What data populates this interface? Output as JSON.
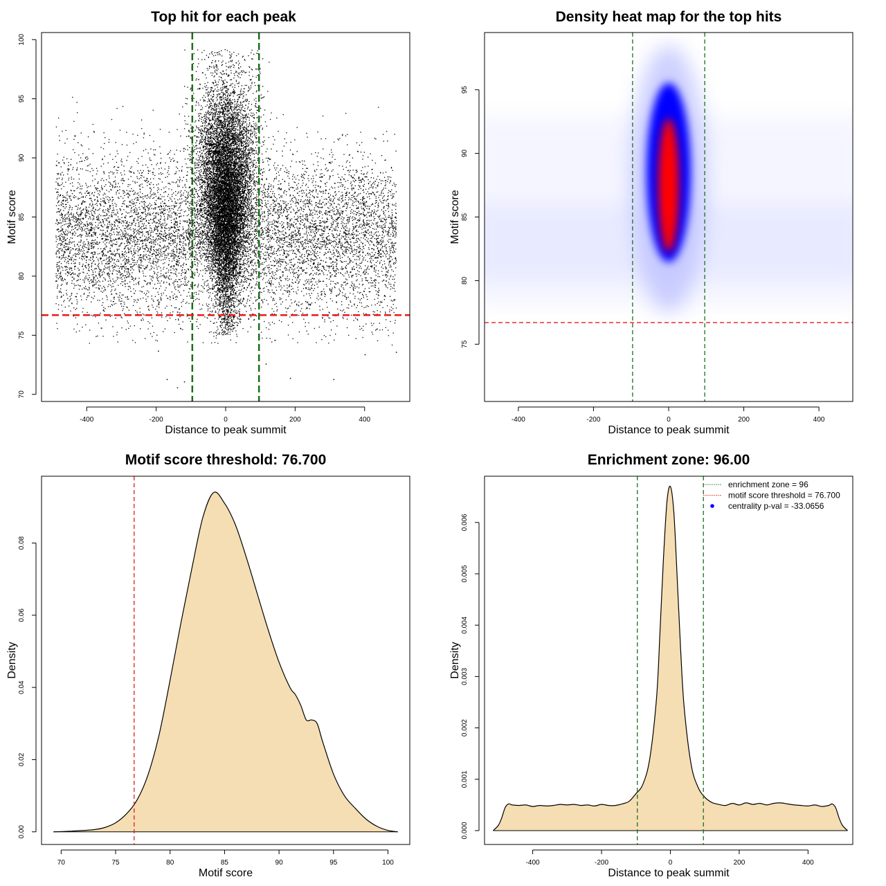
{
  "chart_data": [
    {
      "type": "scatter",
      "title": "Top hit for each peak",
      "xlabel": "Distance to peak summit",
      "ylabel": "Motif score",
      "xlim": [
        -530,
        530
      ],
      "ylim": [
        69.4,
        100.6
      ],
      "xticks": [
        "-400",
        "-200",
        "0",
        "200",
        "400"
      ],
      "yticks": [
        "70",
        "75",
        "80",
        "85",
        "90",
        "95",
        "100"
      ],
      "background_points": {
        "x_range": [
          -490,
          490
        ],
        "y_center": 83.5,
        "y_spread": 3.4,
        "count": 9000
      },
      "peak_points": {
        "x_center": 0,
        "x_spread": 28,
        "y_center": 87,
        "y_spread": 4.6,
        "y_max": 99.2,
        "count": 11000
      },
      "outlier_points": [
        {
          "x": -170,
          "y": 71.3
        },
        {
          "x": -140,
          "y": 70.6
        },
        {
          "x": -120,
          "y": 71.1
        },
        {
          "x": 185,
          "y": 71.4
        },
        {
          "x": 310,
          "y": 71.3
        },
        {
          "x": -195,
          "y": 73.7
        },
        {
          "x": 115,
          "y": 72.6
        },
        {
          "x": 400,
          "y": 73.4
        },
        {
          "x": 490,
          "y": 73.6
        }
      ],
      "hlines": [
        {
          "y": 76.7,
          "color": "#e41a1c",
          "style": "dashed"
        }
      ],
      "vlines": [
        {
          "x": -96,
          "color": "#1a6e1a",
          "style": "dashed"
        },
        {
          "x": 96,
          "color": "#1a6e1a",
          "style": "dashed"
        }
      ],
      "point_color": "#000000"
    },
    {
      "type": "heatmap",
      "title": "Density heat map for the top hits",
      "xlabel": "Distance to peak summit",
      "ylabel": "Motif score",
      "xlim": [
        -490,
        490
      ],
      "ylim": [
        70.5,
        99.5
      ],
      "xticks": [
        "-400",
        "-200",
        "0",
        "200",
        "400"
      ],
      "yticks": [
        "75",
        "80",
        "85",
        "90",
        "95"
      ],
      "colors": [
        "#ffffff",
        "#0000ff",
        "#ff0000"
      ],
      "peak": {
        "x": 0,
        "y_min": 82,
        "y_max": 95,
        "y_center": 87,
        "width": 30
      },
      "background": {
        "y_center": 83,
        "y_spread": 3
      },
      "hlines": [
        {
          "y": 76.7,
          "color": "#e41a1c",
          "style": "dashed"
        }
      ],
      "vlines": [
        {
          "x": -96,
          "color": "#1a6e1a",
          "style": "dashed"
        },
        {
          "x": 96,
          "color": "#1a6e1a",
          "style": "dashed"
        }
      ]
    },
    {
      "type": "area",
      "title": "Motif score threshold: 76.700",
      "xlabel": "Motif score",
      "ylabel": "Density",
      "xlim": [
        68.2,
        102
      ],
      "ylim": [
        -0.0035,
        0.0985
      ],
      "xticks": [
        "70",
        "75",
        "80",
        "85",
        "90",
        "95",
        "100"
      ],
      "yticks": [
        "0.00",
        "0.02",
        "0.04",
        "0.06",
        "0.08"
      ],
      "fill": "#f5deb3",
      "x": [
        69.3,
        71,
        73,
        74,
        75,
        76,
        77,
        78,
        79,
        80,
        81,
        82,
        83,
        84,
        85,
        86,
        87,
        88,
        89,
        90,
        91,
        91.5,
        92,
        92.5,
        93,
        93.5,
        94,
        95,
        96,
        97,
        98,
        99,
        100,
        100.9
      ],
      "y": [
        0,
        0.0002,
        0.0006,
        0.0012,
        0.0025,
        0.005,
        0.009,
        0.016,
        0.027,
        0.042,
        0.058,
        0.073,
        0.087,
        0.094,
        0.091,
        0.085,
        0.076,
        0.066,
        0.056,
        0.047,
        0.04,
        0.038,
        0.035,
        0.031,
        0.031,
        0.03,
        0.025,
        0.016,
        0.01,
        0.0065,
        0.0035,
        0.0015,
        0.0004,
        0
      ],
      "vlines": [
        {
          "x": 76.7,
          "color": "#e41a1c",
          "style": "dashed"
        }
      ]
    },
    {
      "type": "area",
      "title": "Enrichment zone: 96.00",
      "xlabel": "Distance to peak summit",
      "ylabel": "Density",
      "xlim": [
        -540,
        530
      ],
      "ylim": [
        -0.00027,
        0.0069
      ],
      "xticks": [
        "-400",
        "-200",
        "0",
        "200",
        "400"
      ],
      "yticks": [
        "0.000",
        "0.001",
        "0.002",
        "0.003",
        "0.004",
        "0.005",
        "0.006"
      ],
      "fill": "#f5deb3",
      "x": [
        -515,
        -500,
        -490,
        -480,
        -470,
        -460,
        -440,
        -420,
        -400,
        -380,
        -360,
        -340,
        -320,
        -300,
        -280,
        -260,
        -240,
        -220,
        -200,
        -180,
        -160,
        -140,
        -120,
        -100,
        -80,
        -60,
        -40,
        -30,
        -20,
        -10,
        0,
        10,
        20,
        30,
        40,
        60,
        80,
        100,
        120,
        140,
        160,
        180,
        200,
        220,
        240,
        260,
        280,
        300,
        320,
        340,
        360,
        380,
        400,
        420,
        440,
        460,
        470,
        480,
        490,
        500,
        515
      ],
      "y": [
        0,
        0.0001,
        0.00025,
        0.00045,
        0.00052,
        0.0005,
        0.00049,
        0.0005,
        0.00047,
        0.00049,
        0.00048,
        0.00049,
        0.00051,
        0.0005,
        0.00051,
        0.00049,
        0.0005,
        0.00048,
        0.00051,
        0.00049,
        0.00049,
        0.00052,
        0.00057,
        0.00072,
        0.0009,
        0.0014,
        0.0026,
        0.0039,
        0.0053,
        0.0064,
        0.0067,
        0.0062,
        0.0049,
        0.0035,
        0.0024,
        0.0013,
        0.00085,
        0.00065,
        0.00055,
        0.00051,
        0.00049,
        0.00053,
        0.0005,
        0.00054,
        0.00051,
        0.00053,
        0.0005,
        0.00053,
        0.00054,
        0.00052,
        0.0005,
        0.00049,
        0.00048,
        0.0005,
        0.00047,
        0.00049,
        0.00052,
        0.00045,
        0.00025,
        0.0001,
        0
      ],
      "vlines": [
        {
          "x": -96,
          "color": "#1a6e1a",
          "style": "dashed"
        },
        {
          "x": 96,
          "color": "#1a6e1a",
          "style": "dashed"
        }
      ],
      "legend": {
        "position": "top-right",
        "entries": [
          {
            "label": "enrichment zone = 96",
            "color": "#1a6e1a",
            "symbol": "dotted-line"
          },
          {
            "label": "motif score threshold = 76.700",
            "color": "#e41a1c",
            "symbol": "dotted-line"
          },
          {
            "label": "centrality p-val = -33.0656",
            "color": "#0000ff",
            "symbol": "point"
          }
        ]
      }
    }
  ]
}
